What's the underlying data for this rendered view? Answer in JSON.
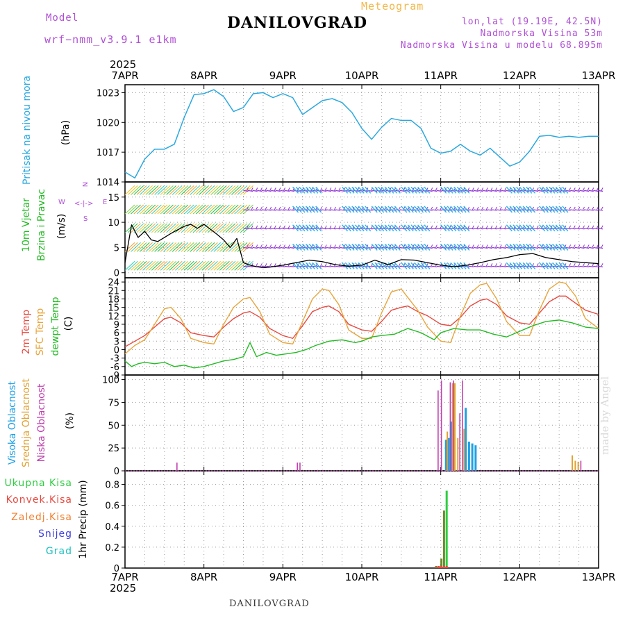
{
  "header": {
    "model_label": "Model",
    "model_name": "wrf−nmm_v3.9.1 e1km",
    "location": "DANILOVGRAD",
    "meteogram_label": "Meteogram",
    "lonlat": "lon,lat (19.19E, 42.5N)",
    "elevation": "Nadmorska Visina 53m",
    "model_elevation": "Nadmorska Visina u modelu 68.895m",
    "year_top": "2025",
    "year_bottom": "2025"
  },
  "footer": {
    "location": "DANILOVGRAD",
    "made_by": "made by Angel"
  },
  "colors": {
    "pressure": "#2aa8e0",
    "wind_speed": "#000000",
    "t2m": "#e8483e",
    "sfc": "#e8a53a",
    "dewpoint": "#22bb22",
    "high_cloud": "#1ca0e6",
    "mid_cloud": "#e0a030",
    "low_cloud": "#c03fb0",
    "total_precip": "#2ecc40",
    "conv_precip": "#e8483e",
    "frz_precip": "#f08030",
    "snow": "#4040e0",
    "grad": "#20c0c0",
    "barb_purple": "#8e2fd6",
    "barb_cyan": "#21b5e6",
    "grid": "#9a9a9a"
  },
  "panels": {
    "pressure": {
      "labels": [
        "Pritisak na nivou mora",
        "(hPa)"
      ]
    },
    "wind": {
      "labels": [
        "10m Vjetar",
        "Brzina i Pravac",
        "(m/s)"
      ],
      "compass": {
        "n": "N",
        "s": "S",
        "e": "E",
        "w": "W"
      }
    },
    "temp": {
      "labels": [
        "2m Temp",
        "SFC Temp",
        "dewpt Temp",
        "(C)"
      ]
    },
    "cloud": {
      "labels": [
        "Visoka Oblacnost",
        "Srednja Oblacnost",
        "Niska Oblacnost",
        "(%)"
      ]
    },
    "precip": {
      "labels": [
        "Ukupna Kisa",
        "Konvek.Kisa",
        "Zaledj.Kisa",
        "Snijeg",
        "Grad",
        "1hr Precip (mm)"
      ]
    }
  },
  "chart_data": [
    {
      "type": "line",
      "panel": "pressure",
      "ylabel": "(hPa)",
      "yticks": [
        1014,
        1017,
        1020,
        1023
      ],
      "ylim": [
        1014,
        1023.8
      ],
      "xlim": [
        0,
        144
      ],
      "x_ticks": [
        "7APR",
        "8APR",
        "9APR",
        "10APR",
        "11APR",
        "12APR",
        "13APR"
      ],
      "grid": true,
      "series": [
        {
          "x": [
            0,
            3,
            6,
            9,
            12,
            15,
            18,
            21,
            24,
            27,
            30,
            33,
            36,
            39,
            42,
            45,
            48,
            51,
            54,
            57,
            60,
            63,
            66,
            69,
            72,
            75,
            78,
            81,
            84,
            87,
            90,
            93,
            96,
            99,
            102,
            105,
            108,
            111,
            114,
            117,
            120,
            123,
            126,
            129,
            132,
            135,
            138,
            141,
            144
          ],
          "values": [
            1015.0,
            1014.4,
            1016.3,
            1017.3,
            1017.3,
            1017.8,
            1020.5,
            1022.8,
            1022.9,
            1023.3,
            1022.6,
            1021.1,
            1021.5,
            1022.9,
            1023.0,
            1022.5,
            1022.9,
            1022.5,
            1020.8,
            1021.5,
            1022.2,
            1022.4,
            1022.0,
            1021.0,
            1019.4,
            1018.3,
            1019.5,
            1020.4,
            1020.2,
            1020.2,
            1019.4,
            1017.4,
            1016.9,
            1017.1,
            1017.8,
            1017.1,
            1016.7,
            1017.4,
            1016.5,
            1015.6,
            1016.0,
            1017.1,
            1018.6,
            1018.7,
            1018.5,
            1018.6,
            1018.5,
            1018.6,
            1018.6
          ]
        }
      ]
    },
    {
      "type": "line",
      "panel": "wind",
      "ylabel": "(m/s)",
      "yticks": [
        0,
        5,
        10,
        15
      ],
      "ylim": [
        -1,
        18
      ],
      "xlim": [
        0,
        144
      ],
      "grid": true,
      "series": [
        {
          "name": "wind speed",
          "x": [
            0,
            2,
            4,
            6,
            8,
            10,
            12,
            14,
            16,
            18,
            20,
            22,
            24,
            26,
            28,
            30,
            32,
            34,
            36,
            38,
            40,
            42,
            44,
            46,
            48,
            52,
            56,
            60,
            64,
            68,
            72,
            76,
            80,
            84,
            88,
            92,
            96,
            100,
            104,
            108,
            112,
            116,
            120,
            124,
            128,
            132,
            136,
            140,
            144
          ],
          "values": [
            2.0,
            9.5,
            7.0,
            8.2,
            6.5,
            6.2,
            7.0,
            7.8,
            8.5,
            9.2,
            9.6,
            8.8,
            9.6,
            8.6,
            7.6,
            6.5,
            5.0,
            6.8,
            2.0,
            1.5,
            1.2,
            1.0,
            1.1,
            1.3,
            1.5,
            2.0,
            2.5,
            2.2,
            1.6,
            1.3,
            1.5,
            2.5,
            1.6,
            2.6,
            2.5,
            2.0,
            1.5,
            1.2,
            1.5,
            2.0,
            2.6,
            3.0,
            3.6,
            3.8,
            3.0,
            2.6,
            2.2,
            2.0,
            1.8
          ]
        }
      ]
    },
    {
      "type": "line",
      "panel": "temp",
      "ylabel": "(C)",
      "yticks": [
        -9,
        -6,
        -3,
        0,
        3,
        6,
        9,
        12,
        15,
        18,
        21,
        24
      ],
      "ylim": [
        -9,
        25.5
      ],
      "xlim": [
        0,
        144
      ],
      "grid": true,
      "series": [
        {
          "name": "2m Temp",
          "x": [
            0,
            3,
            6,
            9,
            12,
            14,
            17,
            20,
            24,
            27,
            30,
            33,
            36,
            38,
            41,
            44,
            48,
            51,
            54,
            57,
            60,
            62,
            65,
            68,
            72,
            75,
            78,
            81,
            84,
            86,
            89,
            92,
            96,
            99,
            102,
            105,
            108,
            110,
            113,
            116,
            120,
            123,
            126,
            129,
            132,
            134,
            137,
            140,
            144
          ],
          "values": [
            1.0,
            3.0,
            5.0,
            8.0,
            11.0,
            11.5,
            9.5,
            6.0,
            5.0,
            4.5,
            8.0,
            11.0,
            13.0,
            13.5,
            11.5,
            7.5,
            5.0,
            4.0,
            8.5,
            13.5,
            15.0,
            15.5,
            13.5,
            9.0,
            7.0,
            6.5,
            10.0,
            14.0,
            15.0,
            15.5,
            13.5,
            12.0,
            9.0,
            8.5,
            11.5,
            15.5,
            17.5,
            18.0,
            16.0,
            12.0,
            9.5,
            9.0,
            13.0,
            17.0,
            19.0,
            19.0,
            16.5,
            14.0,
            12.5
          ]
        },
        {
          "name": "SFC Temp",
          "x": [
            0,
            3,
            6,
            9,
            12,
            14,
            17,
            20,
            24,
            27,
            30,
            33,
            36,
            38,
            41,
            44,
            48,
            51,
            54,
            57,
            60,
            62,
            65,
            68,
            72,
            75,
            78,
            81,
            84,
            86,
            89,
            92,
            96,
            99,
            102,
            105,
            108,
            110,
            113,
            116,
            120,
            123,
            126,
            129,
            132,
            134,
            137,
            140,
            144
          ],
          "values": [
            -1.5,
            1.5,
            3.5,
            9.0,
            14.5,
            15.0,
            11.0,
            4.0,
            2.5,
            2.0,
            9.0,
            15.0,
            18.0,
            18.5,
            13.5,
            5.5,
            2.5,
            2.0,
            10.0,
            18.0,
            21.5,
            21.0,
            16.0,
            7.0,
            4.0,
            4.0,
            13.0,
            20.5,
            21.5,
            18.5,
            14.0,
            8.0,
            3.0,
            2.5,
            12.0,
            20.0,
            23.0,
            23.5,
            18.0,
            10.0,
            5.0,
            5.0,
            14.0,
            21.5,
            24.0,
            23.5,
            19.0,
            11.0,
            7.5
          ]
        },
        {
          "name": "dewpt Temp",
          "x": [
            0,
            2,
            4,
            6,
            9,
            12,
            15,
            18,
            21,
            24,
            27,
            30,
            33,
            36,
            38,
            40,
            43,
            46,
            49,
            52,
            55,
            58,
            62,
            66,
            70,
            72,
            75,
            78,
            82,
            86,
            90,
            94,
            96,
            100,
            104,
            108,
            112,
            116,
            120,
            124,
            128,
            132,
            136,
            140,
            144
          ],
          "values": [
            -4.0,
            -6.0,
            -5.0,
            -4.5,
            -5.0,
            -4.5,
            -6.0,
            -5.5,
            -6.5,
            -6.0,
            -5.0,
            -4.0,
            -3.5,
            -2.5,
            2.5,
            -2.5,
            -1.0,
            -2.0,
            -1.5,
            -1.0,
            0.0,
            1.5,
            3.0,
            3.5,
            2.5,
            3.0,
            4.5,
            5.0,
            5.5,
            7.5,
            6.0,
            3.5,
            6.0,
            7.5,
            7.0,
            7.0,
            5.5,
            4.5,
            6.5,
            8.5,
            10.0,
            10.5,
            9.5,
            8.0,
            7.5
          ]
        }
      ]
    },
    {
      "type": "bar",
      "panel": "cloud",
      "ylabel": "(%)",
      "yticks": [
        0,
        25,
        50,
        75,
        100
      ],
      "ylim": [
        0,
        105
      ],
      "xlim": [
        0,
        144
      ],
      "grid": true,
      "series": [
        {
          "name": "Visoka Oblacnost",
          "x": [
            97.6,
            98.4,
            99.2,
            103.6,
            104.6,
            105.6,
            106.6
          ],
          "values": [
            34,
            36,
            54,
            69,
            32,
            30,
            28
          ]
        },
        {
          "name": "Srednja Oblacnost",
          "x": [
            98.0,
            99.6,
            100.3,
            101.2,
            103.1,
            136.0,
            136.9,
            137.8
          ],
          "values": [
            43,
            96,
            96,
            36,
            46,
            17,
            11,
            10
          ]
        },
        {
          "name": "Niska Oblacnost",
          "x": [
            15.8,
            52.4,
            53.2,
            58.6,
            95.2,
            96.2,
            98.9,
            99.9,
            101.8,
            102.6,
            138.6
          ],
          "values": [
            9,
            9,
            9,
            1,
            88,
            99,
            97,
            99,
            63,
            99,
            11
          ]
        }
      ]
    },
    {
      "type": "bar",
      "panel": "precip",
      "ylabel": "1hr Precip (mm)",
      "yticks": [
        0,
        0.2,
        0.4,
        0.6,
        0.8
      ],
      "ylim": [
        0,
        0.93
      ],
      "xlim": [
        0,
        144
      ],
      "grid": true,
      "series": [
        {
          "name": "Ukupna Kisa",
          "x": [
            94.6,
            95.4,
            96.2,
            97.0,
            97.8
          ],
          "values": [
            0.02,
            0.02,
            0.09,
            0.55,
            0.74
          ]
        },
        {
          "name": "Konvek.Kisa",
          "x": [
            94.6,
            95.4,
            96.2,
            97.0,
            97.8
          ],
          "values": [
            0.01,
            0.02,
            0.02,
            0.02,
            0.02
          ]
        }
      ]
    }
  ]
}
